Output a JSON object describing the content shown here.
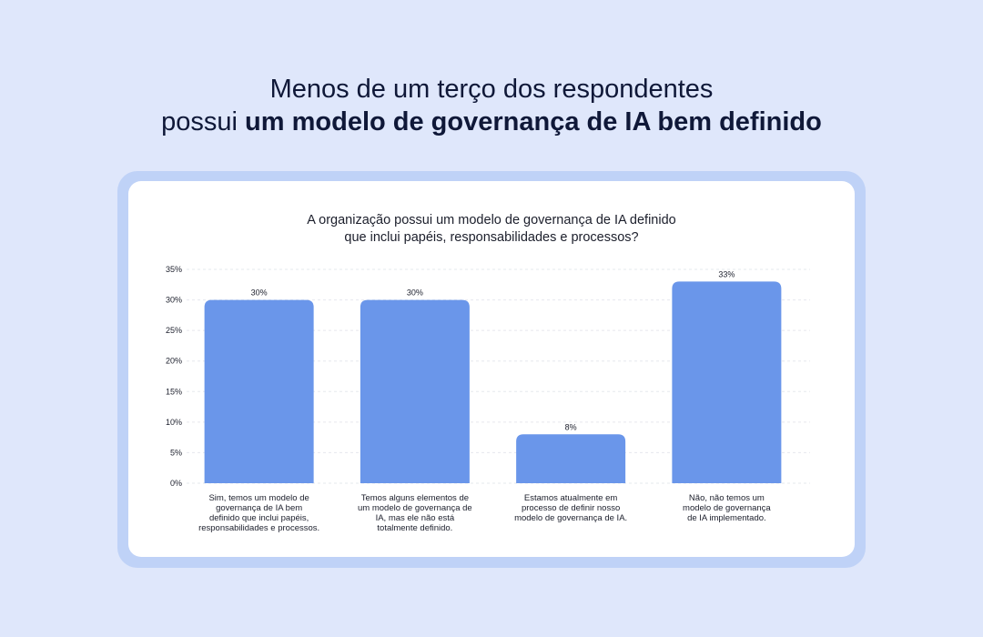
{
  "headline": {
    "line1": "Menos de um terço dos respondentes",
    "line2_prefix": "possui ",
    "line2_bold": "um modelo de governança de IA bem definido"
  },
  "colors": {
    "background": "#dfe7fb",
    "card_border": "#bfd2f7",
    "bar": "#6a96ea",
    "text": "#0f1838"
  },
  "chart_data": {
    "type": "bar",
    "title_line1": "A organização possui um modelo de governança de IA definido",
    "title_line2": "que inclui papéis, responsabilidades e processos?",
    "categories": [
      [
        "Sim, temos um modelo de",
        "governança de IA bem",
        "definido que inclui papéis,",
        "responsabilidades e processos."
      ],
      [
        "Temos alguns elementos de",
        "um modelo de governança de",
        "IA, mas ele não está",
        "totalmente definido."
      ],
      [
        "Estamos atualmente em",
        "processo de definir nosso",
        "modelo de governança de IA."
      ],
      [
        "Não, não temos um",
        "modelo de governança",
        "de IA implementado."
      ]
    ],
    "values": [
      30,
      30,
      8,
      33
    ],
    "value_labels": [
      "30%",
      "30%",
      "8%",
      "33%"
    ],
    "yticks": [
      0,
      5,
      10,
      15,
      20,
      25,
      30,
      35
    ],
    "ytick_labels": [
      "0%",
      "5%",
      "10%",
      "15%",
      "20%",
      "25%",
      "30%",
      "35%"
    ],
    "ylim": [
      0,
      35
    ],
    "grid": true,
    "xlabel": "",
    "ylabel": ""
  }
}
